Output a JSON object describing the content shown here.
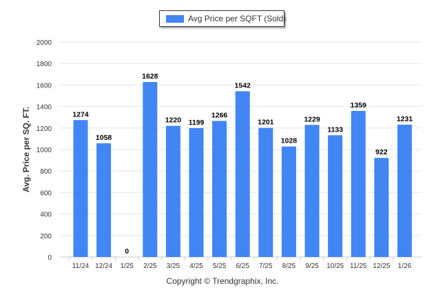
{
  "chart_data": {
    "type": "bar",
    "categories": [
      "11/24",
      "12/24",
      "1/25",
      "2/25",
      "3/25",
      "4/25",
      "5/25",
      "6/25",
      "7/25",
      "8/25",
      "9/25",
      "10/25",
      "11/25",
      "12/25",
      "1/26"
    ],
    "series": [
      {
        "name": "Avg Price per SQFT (Sold)",
        "values": [
          1274,
          1058,
          0,
          1628,
          1220,
          1199,
          1266,
          1542,
          1201,
          1028,
          1229,
          1133,
          1359,
          922,
          1231
        ]
      }
    ],
    "ylabel": "Avg. Price per SQ. FT.",
    "ylim": [
      0,
      2000
    ],
    "yticks": [
      0,
      200,
      400,
      600,
      800,
      1000,
      1200,
      1400,
      1600,
      1800,
      2000
    ],
    "grid": true,
    "legend_position": "top-center",
    "bar_color": "#4285f4"
  },
  "copyright": "Copyright © Trendgraphix, Inc."
}
